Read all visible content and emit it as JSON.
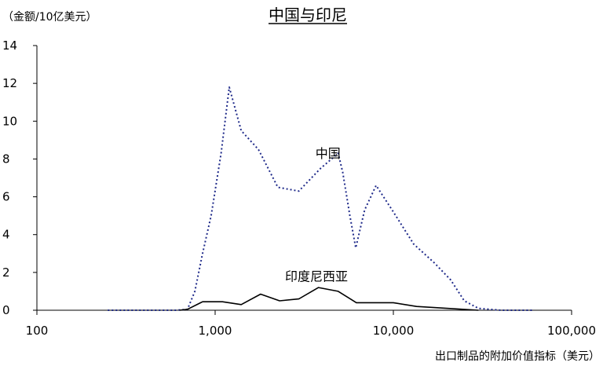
{
  "chart_data": {
    "type": "line",
    "title": "中国与印尼",
    "ylabel": "（金额/10亿美元）",
    "xlabel": "出口制品的附加价值指标（美元）",
    "x_scale": "log",
    "xlim": [
      100,
      100000
    ],
    "ylim": [
      0,
      14
    ],
    "x_ticks": [
      100,
      1000,
      10000,
      100000
    ],
    "x_tick_labels": [
      "100",
      "1,000",
      "10,000",
      "100,000"
    ],
    "y_ticks": [
      0,
      2,
      4,
      6,
      8,
      10,
      12,
      14
    ],
    "y_tick_labels": [
      "0",
      "2",
      "4",
      "6",
      "8",
      "10",
      "12",
      "14"
    ],
    "grid": false,
    "legend": "none",
    "series": [
      {
        "name": "中国",
        "color": "#1f2a8a",
        "style": "dotted",
        "x": [
          250,
          300,
          400,
          500,
          600,
          650,
          700,
          770,
          850,
          950,
          1080,
          1200,
          1400,
          1750,
          2250,
          2950,
          3900,
          4900,
          5200,
          5700,
          6150,
          6900,
          8000,
          10000,
          13000,
          17000,
          21000,
          25000,
          30000,
          40000,
          60000
        ],
        "y": [
          0,
          0,
          0,
          0,
          0,
          0.02,
          0.05,
          1,
          3,
          5,
          8.3,
          11.8,
          9.5,
          8.5,
          6.5,
          6.3,
          7.5,
          8.3,
          7.3,
          5,
          3.3,
          5.3,
          6.6,
          5.2,
          3.5,
          2.5,
          1.6,
          0.5,
          0.1,
          0,
          0
        ]
      },
      {
        "name": "印度尼西亚",
        "color": "#000000",
        "style": "solid",
        "x": [
          630,
          700,
          850,
          1100,
          1400,
          1800,
          2300,
          2950,
          3800,
          4900,
          6200,
          8000,
          10000,
          13500,
          20000,
          30000
        ],
        "y": [
          0,
          0.05,
          0.45,
          0.45,
          0.3,
          0.85,
          0.5,
          0.6,
          1.2,
          1.0,
          0.4,
          0.4,
          0.4,
          0.2,
          0.1,
          0
        ]
      }
    ],
    "annotations": [
      {
        "text": "中国",
        "x": 4300,
        "y": 8.3
      },
      {
        "text": "印度尼西亚",
        "x": 3700,
        "y": 1.8
      }
    ]
  }
}
